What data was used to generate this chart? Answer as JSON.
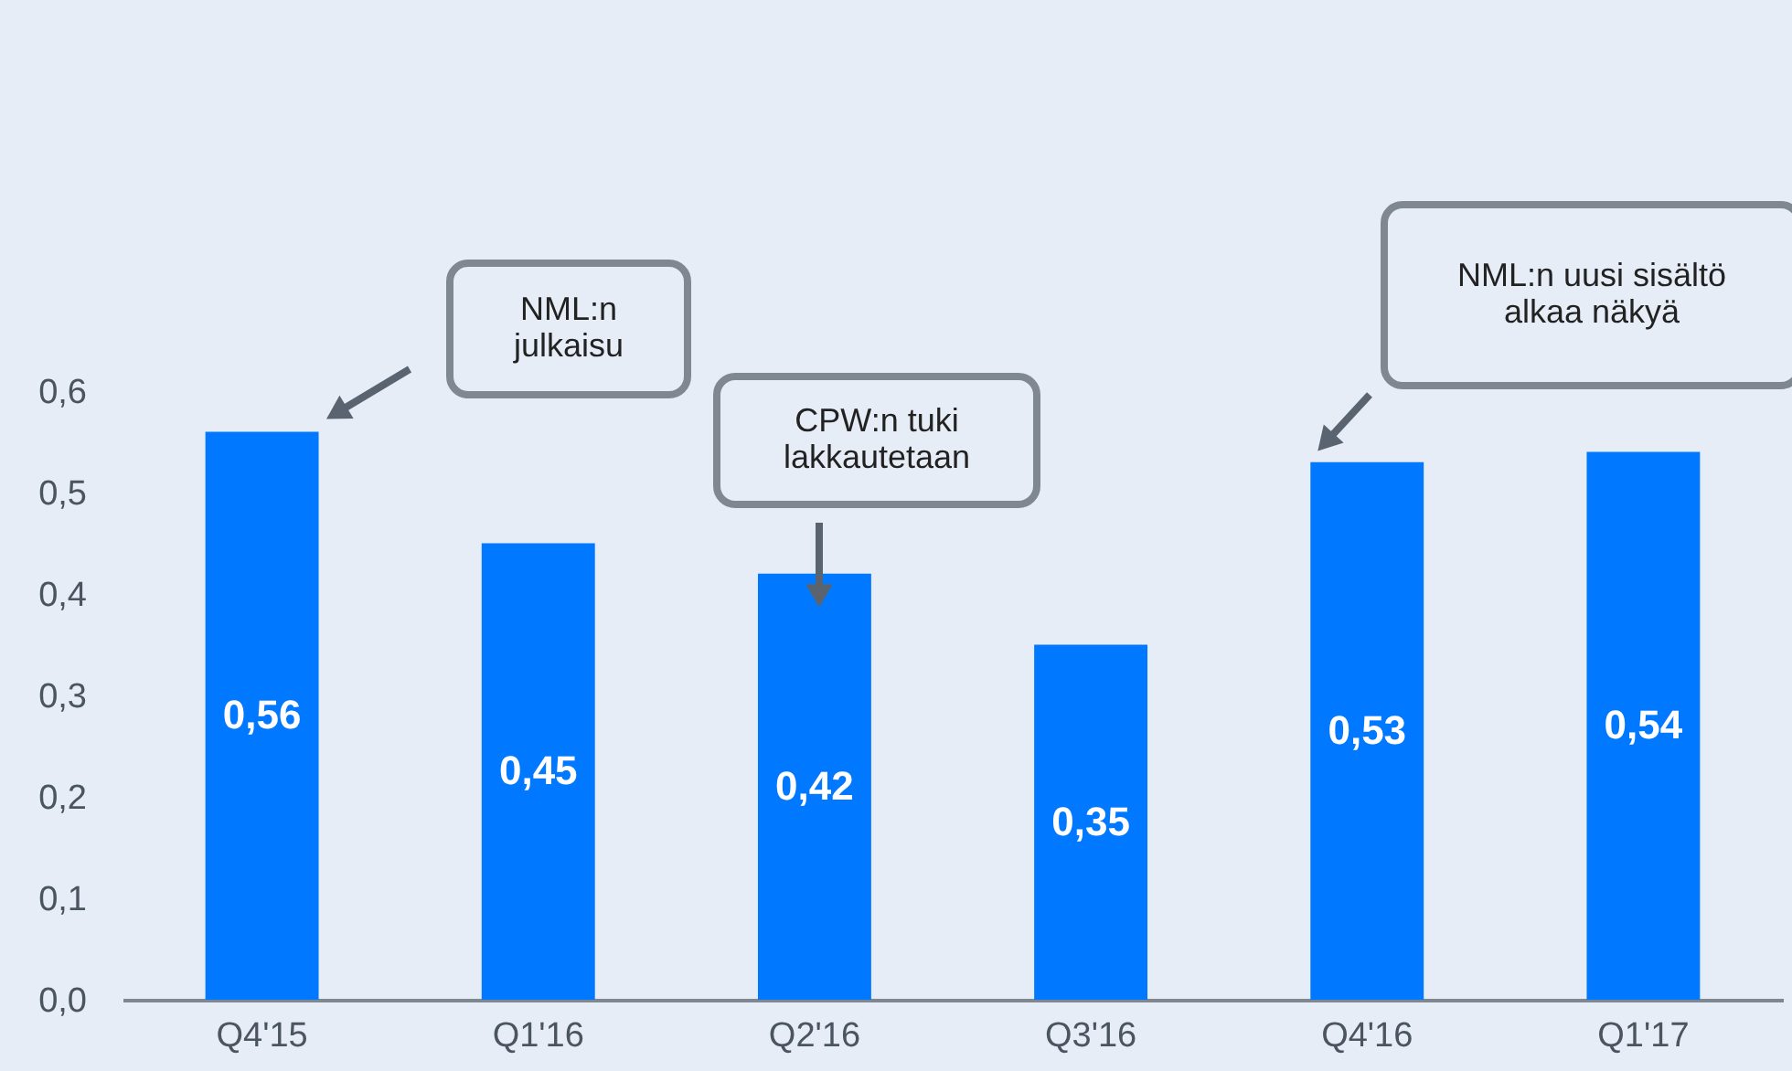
{
  "chart_data": {
    "type": "bar",
    "categories": [
      "Q4'15",
      "Q1'16",
      "Q2'16",
      "Q3'16",
      "Q4'16",
      "Q1'17"
    ],
    "values": [
      0.56,
      0.45,
      0.42,
      0.35,
      0.53,
      0.54
    ],
    "value_labels": [
      "0,56",
      "0,45",
      "0,42",
      "0,35",
      "0,53",
      "0,54"
    ],
    "color": "#0078ff",
    "ylim": [
      0,
      0.6
    ],
    "yticks": [
      {
        "value": 0,
        "label": "0,0"
      },
      {
        "value": 0.1,
        "label": "0,1"
      },
      {
        "value": 0.2,
        "label": "0,2"
      },
      {
        "value": 0.3,
        "label": "0,3"
      },
      {
        "value": 0.4,
        "label": "0,4"
      },
      {
        "value": 0.5,
        "label": "0,5"
      },
      {
        "value": 0.6,
        "label": "0,6"
      }
    ],
    "grid": false,
    "annotations": [
      "NML:n\njulkaisu",
      "CPW:n tuki\nlakkautetaan",
      "NML:n uusi sisältö\nalkaa näkyä"
    ]
  }
}
